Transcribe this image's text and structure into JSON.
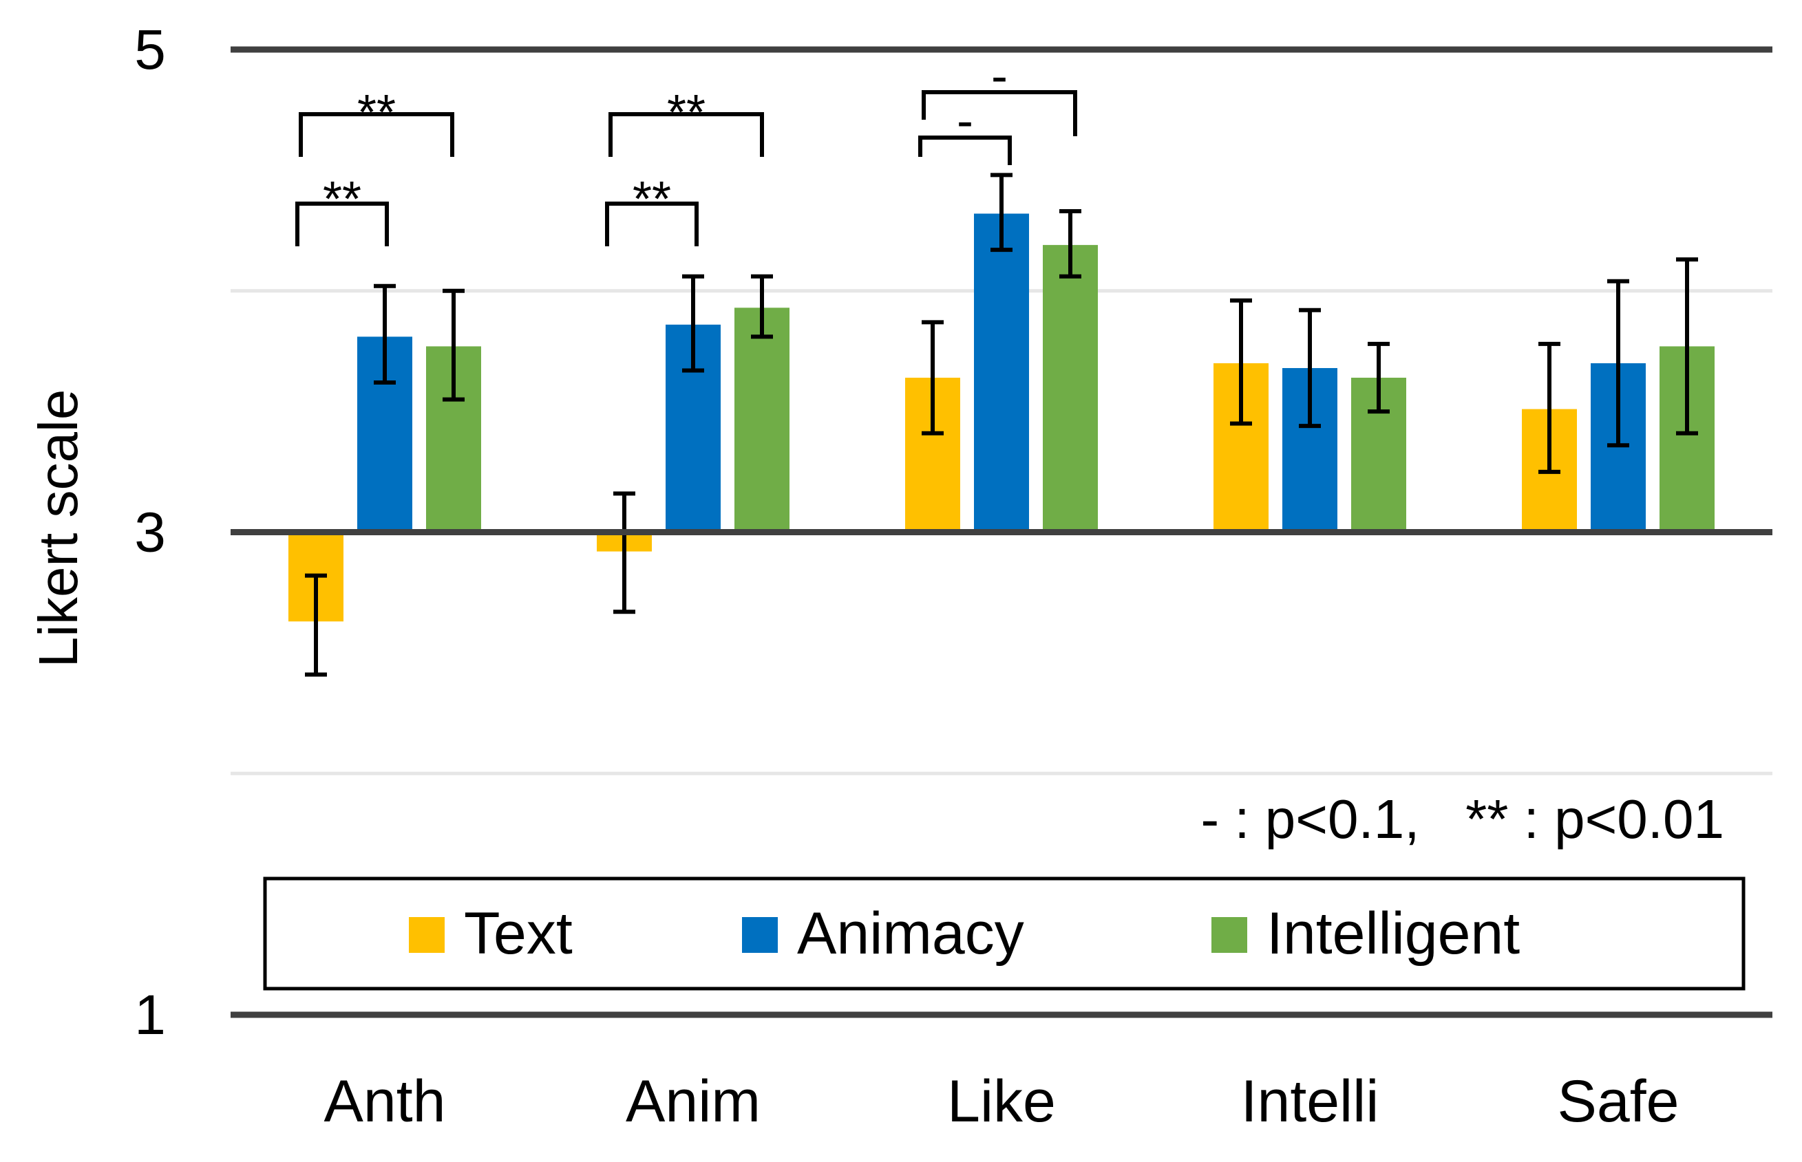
{
  "chart_data": {
    "type": "bar",
    "title": "",
    "xlabel": "",
    "ylabel": "Likert scale",
    "ylim": [
      1,
      5
    ],
    "baseline": 3,
    "yticks": [
      1,
      3,
      5
    ],
    "minor_gridlines": [
      2,
      4
    ],
    "categories": [
      "Anth",
      "Anim",
      "Like",
      "Intelli",
      "Safe"
    ],
    "series": [
      {
        "name": "Text",
        "color": "#FFC000",
        "values": [
          2.63,
          2.92,
          3.64,
          3.7,
          3.51
        ],
        "err_low": [
          2.41,
          2.67,
          3.41,
          3.45,
          3.25
        ],
        "err_high": [
          2.82,
          3.16,
          3.87,
          3.96,
          3.78
        ]
      },
      {
        "name": "Animacy",
        "color": "#0070C0",
        "values": [
          3.81,
          3.86,
          4.32,
          3.68,
          3.7
        ],
        "err_low": [
          3.62,
          3.67,
          4.17,
          3.44,
          3.36
        ],
        "err_high": [
          4.02,
          4.06,
          4.48,
          3.92,
          4.04
        ]
      },
      {
        "name": "Intelligent",
        "color": "#70AD47",
        "values": [
          3.77,
          3.93,
          4.19,
          3.64,
          3.77
        ],
        "err_low": [
          3.55,
          3.81,
          4.06,
          3.5,
          3.41
        ],
        "err_high": [
          4.0,
          4.06,
          4.33,
          3.78,
          4.13
        ]
      }
    ],
    "significance": [
      {
        "category": 0,
        "from": 0,
        "to": 1,
        "label": "**"
      },
      {
        "category": 0,
        "from": 0,
        "to": 2,
        "label": "**"
      },
      {
        "category": 1,
        "from": 0,
        "to": 1,
        "label": "**"
      },
      {
        "category": 1,
        "from": 0,
        "to": 2,
        "label": "**"
      },
      {
        "category": 2,
        "from": 0,
        "to": 1,
        "label": "-"
      },
      {
        "category": 2,
        "from": 0,
        "to": 2,
        "label": "-"
      }
    ],
    "annotation": "- : p<0.1,   ** : p<0.01",
    "legend": {
      "position": "bottom-center",
      "entries": [
        "Text",
        "Animacy",
        "Intelligent"
      ]
    }
  }
}
